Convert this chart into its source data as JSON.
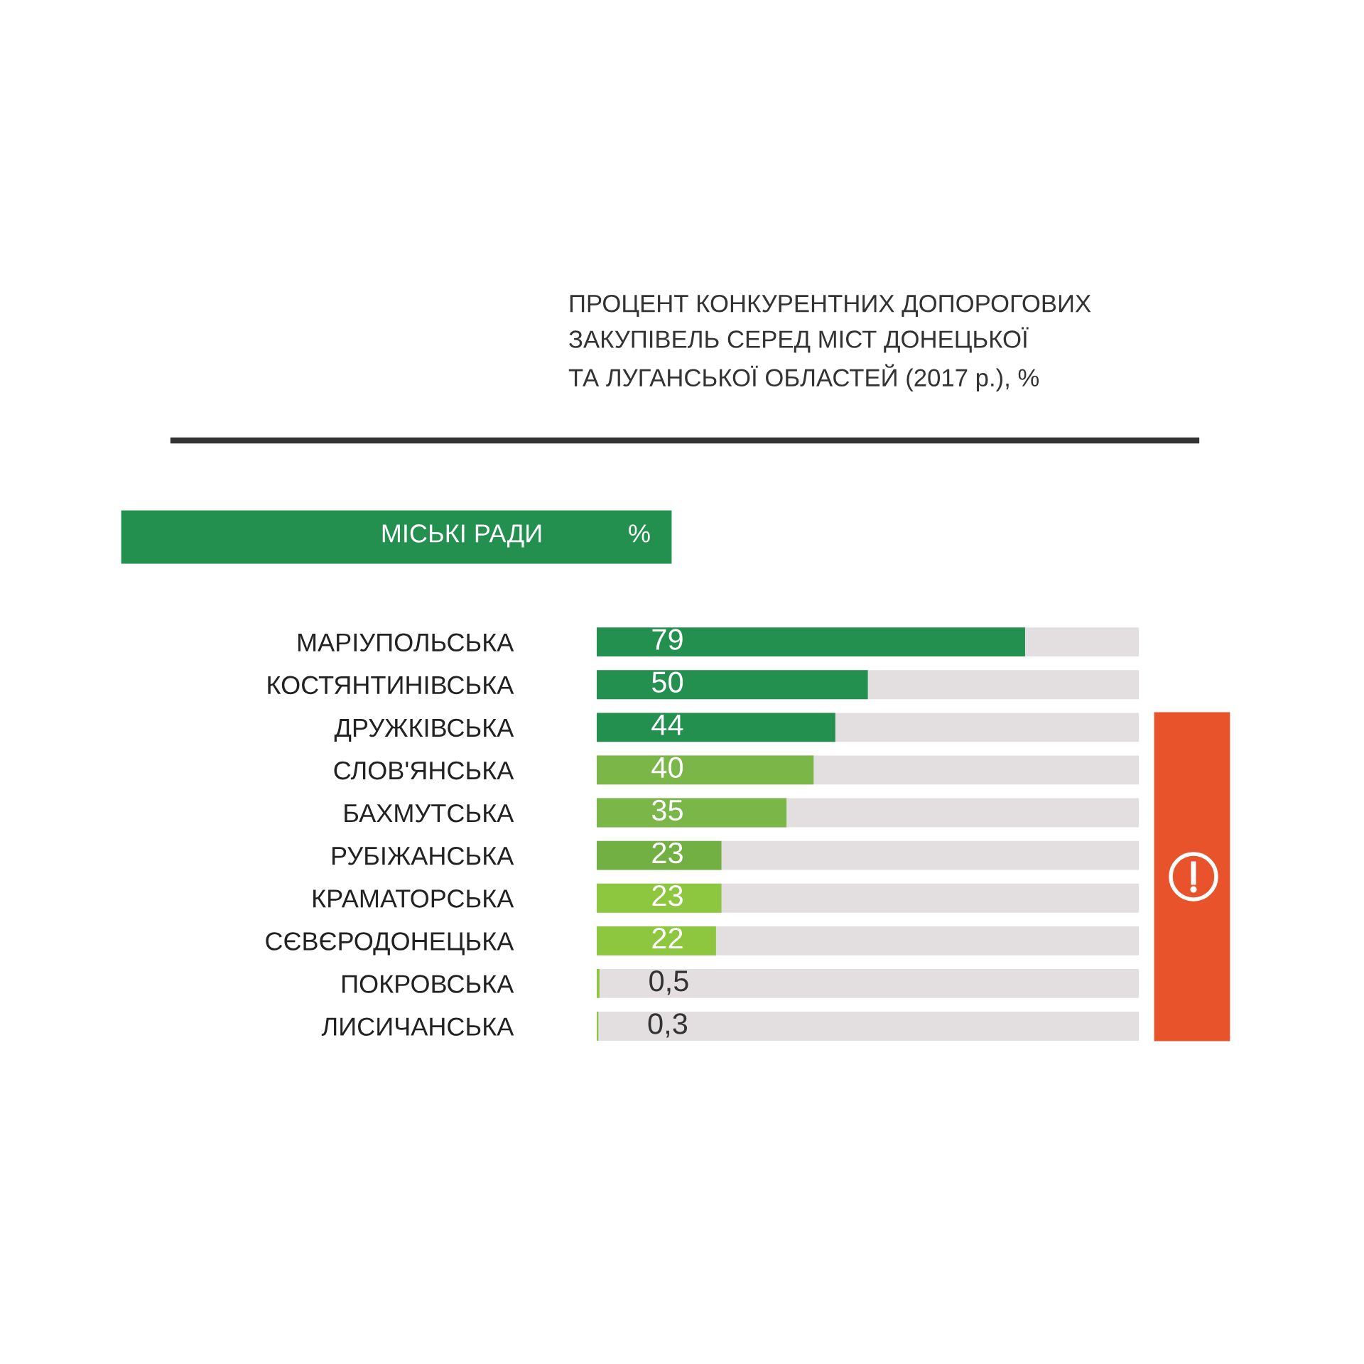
{
  "chart_data": {
    "type": "bar",
    "orientation": "horizontal",
    "title": "ПРОЦЕНТ КОНКУРЕНТНИХ ДОПОРОГОВИХ\nЗАКУПІВЕЛЬ СЕРЕД МІСТ ДОНЕЦЬКОЇ\nТА ЛУГАНСЬКОЇ ОБЛАСТЕЙ (2017 р.), %",
    "annotations": [
      "МІСЬКІ РАДИ",
      "%"
    ],
    "categories": [
      "МАРІУПОЛЬСЬКА",
      "КОСТЯНТИНІВСЬКА",
      "ДРУЖКІВСЬКА",
      "СЛОВ'ЯНСЬКА",
      "БАХМУТСЬКА",
      "РУБІЖАНСЬКА",
      "КРАМАТОРСЬКА",
      "СЄВЄРОДОНЕЦЬКА",
      "ПОКРОВСЬКА",
      "ЛИСИЧАНСЬКА"
    ],
    "values": [
      79,
      50,
      44,
      40,
      35,
      23,
      23,
      22,
      0.5,
      0.3
    ],
    "value_labels": [
      "79",
      "50",
      "44",
      "40",
      "35",
      "23",
      "23",
      "22",
      "0,5",
      "0,3"
    ],
    "colors": [
      "#23904f",
      "#23904f",
      "#23904f",
      "#7ab648",
      "#7ab648",
      "#72b043",
      "#8dc63f",
      "#8dc63f",
      "#8dc63f",
      "#8dc63f"
    ],
    "xlim": [
      0,
      100
    ],
    "grid": false,
    "legend": false
  }
}
